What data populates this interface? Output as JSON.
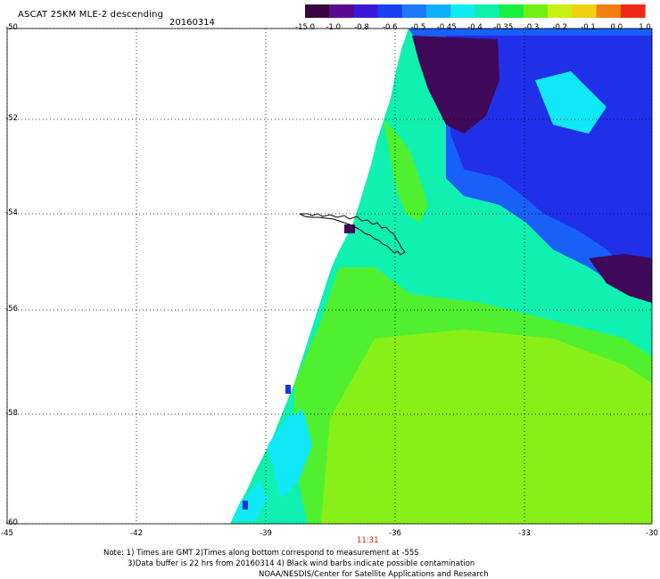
{
  "header": {
    "title": "ASCAT 25KM MLE-2 descending",
    "date": "20160314"
  },
  "colorbar": {
    "labels": [
      "-15.0",
      "-1.0",
      "-0.8",
      "-0.6",
      "-0.5",
      "-0.45",
      "-0.4",
      "-0.35",
      "-0.3",
      "-0.2",
      "-0.1",
      "0.0",
      "1.0"
    ],
    "colors": [
      "#3a0640",
      "#5a0a90",
      "#3a1ad8",
      "#1a40f0",
      "#1a7af8",
      "#10b0f8",
      "#10ecf0",
      "#10f0a8",
      "#18f040",
      "#70f010",
      "#c8f010",
      "#f0d010",
      "#f08010",
      "#f02818"
    ]
  },
  "map": {
    "lat_labels": [
      "-50",
      "-52",
      "-54",
      "-56",
      "-58",
      "-60"
    ],
    "lon_labels": [
      "-45",
      "-42",
      "-39",
      "-36",
      "-33",
      "-30"
    ],
    "time_label": "11:31",
    "swath_colors": {
      "deep": "#400858",
      "blue": "#2030e8",
      "blue_light": "#1860f8",
      "cyan": "#10e8f8",
      "teal": "#10f0b0",
      "green": "#50f030",
      "lime": "#88f018"
    }
  },
  "notes": {
    "line1": "Note: 1) Times are GMT 2)Times along bottom correspond to measurement at -55S",
    "line2": "3)Data buffer is 22 hrs from 20160314 4) Black wind barbs indicate possible contamination",
    "line3": "NOAA/NESDIS/Center for Satellite Applications and Research"
  }
}
